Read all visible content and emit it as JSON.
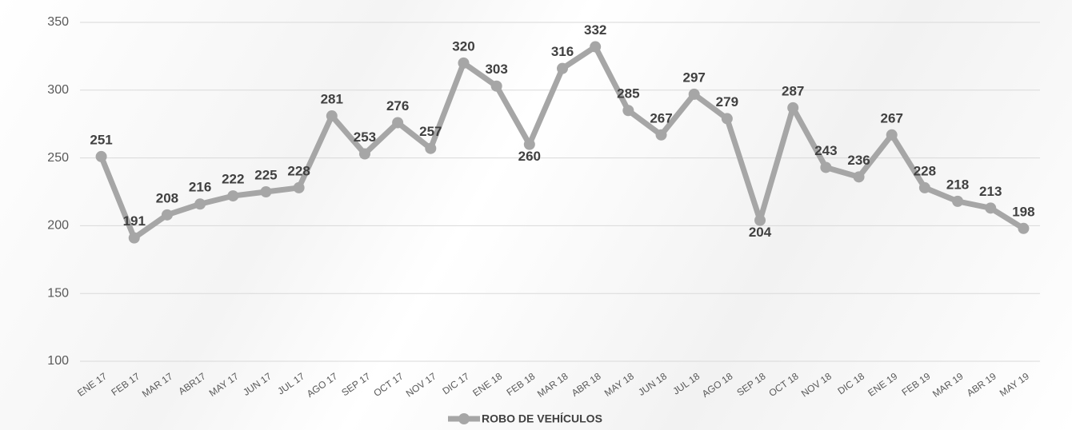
{
  "chart_data": {
    "type": "line",
    "categories": [
      "ENE 17",
      "FEB 17",
      "MAR 17",
      "ABR17",
      "MAY 17",
      "JUN 17",
      "JUL 17",
      "AGO 17",
      "SEP 17",
      "OCT 17",
      "NOV 17",
      "DIC 17",
      "ENE 18",
      "FEB 18",
      "MAR 18",
      "ABR 18",
      "MAY 18",
      "JUN 18",
      "JUL 18",
      "AGO 18",
      "SEP 18",
      "OCT 18",
      "NOV 18",
      "DIC 18",
      "ENE 19",
      "FEB 19",
      "MAR 19",
      "ABR 19",
      "MAY 19"
    ],
    "series": [
      {
        "name": "ROBO DE VEHÍCULOS",
        "color": "#a6a6a6",
        "values": [
          251,
          191,
          208,
          216,
          222,
          225,
          228,
          281,
          253,
          276,
          257,
          320,
          303,
          260,
          316,
          332,
          285,
          267,
          297,
          279,
          204,
          287,
          243,
          236,
          267,
          228,
          218,
          213,
          198
        ]
      }
    ],
    "ylim": [
      100,
      350
    ],
    "yticks": [
      100,
      150,
      200,
      250,
      300,
      350
    ],
    "grid": true,
    "legend": "bottom"
  }
}
